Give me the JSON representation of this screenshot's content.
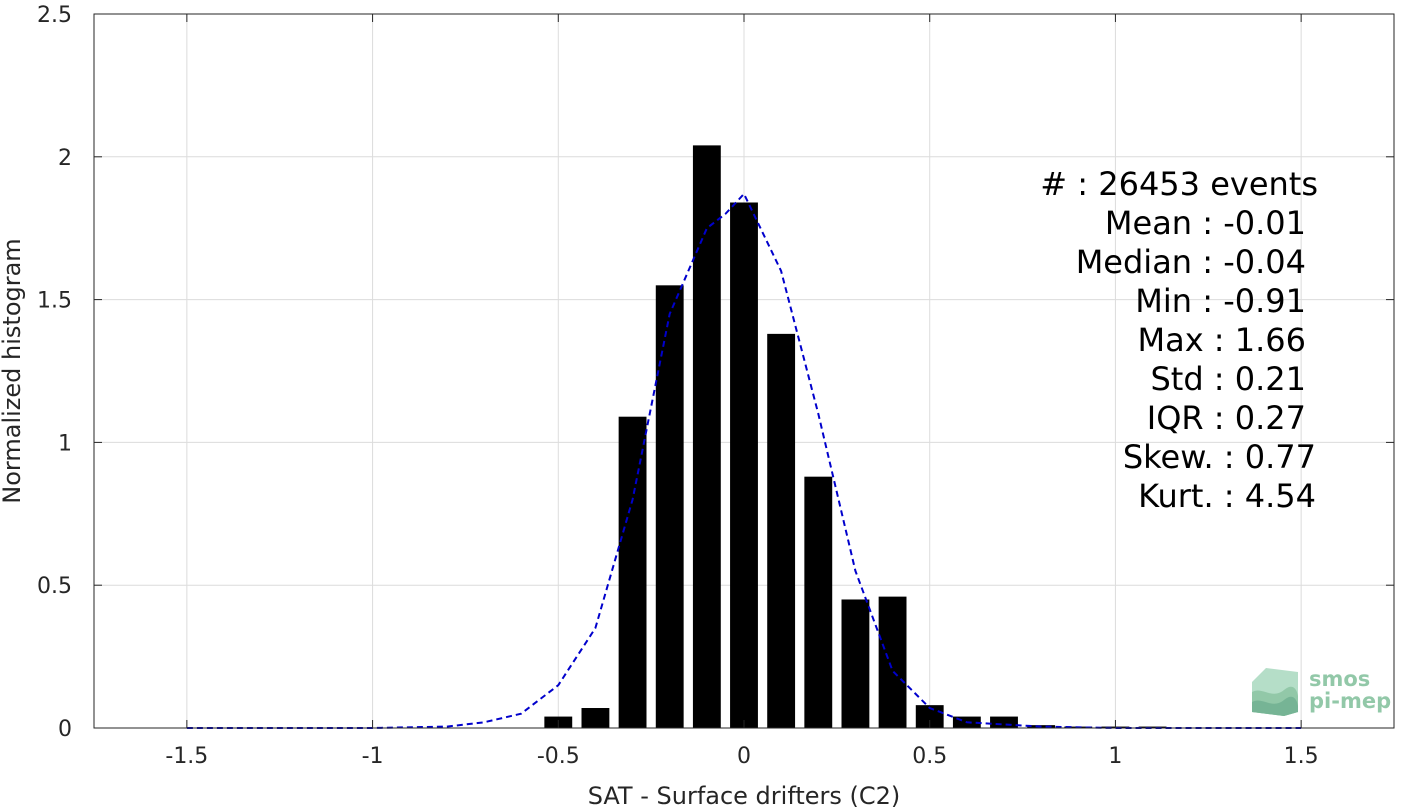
{
  "chart_data": {
    "type": "bar",
    "xlabel": "SAT - Surface drifters (C2)",
    "ylabel": "Normalized histogram",
    "xlim": [
      -1.75,
      1.75
    ],
    "ylim": [
      0,
      2.5
    ],
    "xticks": [
      -1.5,
      -1,
      -0.5,
      0,
      0.5,
      1,
      1.5
    ],
    "xtick_labels": [
      "-1.5",
      "-1",
      "-0.5",
      "0",
      "0.5",
      "1",
      "1.5"
    ],
    "yticks": [
      0,
      0.5,
      1,
      1.5,
      2,
      2.5
    ],
    "ytick_labels": [
      "0",
      "0.5",
      "1",
      "1.5",
      "2",
      "2.5"
    ],
    "grid": true,
    "bin_width": 0.1,
    "bars": {
      "x": [
        -0.5,
        -0.4,
        -0.3,
        -0.2,
        -0.1,
        0.0,
        0.1,
        0.2,
        0.3,
        0.4,
        0.5,
        0.6,
        0.7,
        0.8,
        0.9,
        1.0,
        1.1
      ],
      "values": [
        0.04,
        0.07,
        1.09,
        1.55,
        2.04,
        1.84,
        1.38,
        0.88,
        0.45,
        0.46,
        0.08,
        0.04,
        0.04,
        0.01,
        0.005,
        0.005,
        0.005
      ],
      "color": "#000000"
    },
    "fit_curve": {
      "style": "dashed",
      "color": "#0000cc",
      "x": [
        -1.5,
        -1.0,
        -0.8,
        -0.7,
        -0.6,
        -0.5,
        -0.4,
        -0.3,
        -0.2,
        -0.1,
        -0.05,
        0.0,
        0.1,
        0.2,
        0.3,
        0.4,
        0.5,
        0.6,
        0.8,
        1.0,
        1.5
      ],
      "y": [
        0.0,
        0.0,
        0.005,
        0.02,
        0.05,
        0.15,
        0.35,
        0.8,
        1.45,
        1.75,
        1.8,
        1.87,
        1.6,
        1.1,
        0.55,
        0.2,
        0.07,
        0.02,
        0.005,
        0.0,
        0.0
      ]
    },
    "stats": [
      {
        "label": "#  : 26453 events"
      },
      {
        "label": "Mean : -0.01"
      },
      {
        "label": "Median : -0.04"
      },
      {
        "label": "Min : -0.91"
      },
      {
        "label": "Max : 1.66"
      },
      {
        "label": "Std : 0.21"
      },
      {
        "label": "IQR : 0.27"
      },
      {
        "label": "Skew. : 0.77"
      },
      {
        "label": "Kurt. : 4.54"
      }
    ]
  },
  "logo": {
    "line1": "smos",
    "line2": "pi-mep",
    "color": "#7fbf9a"
  }
}
